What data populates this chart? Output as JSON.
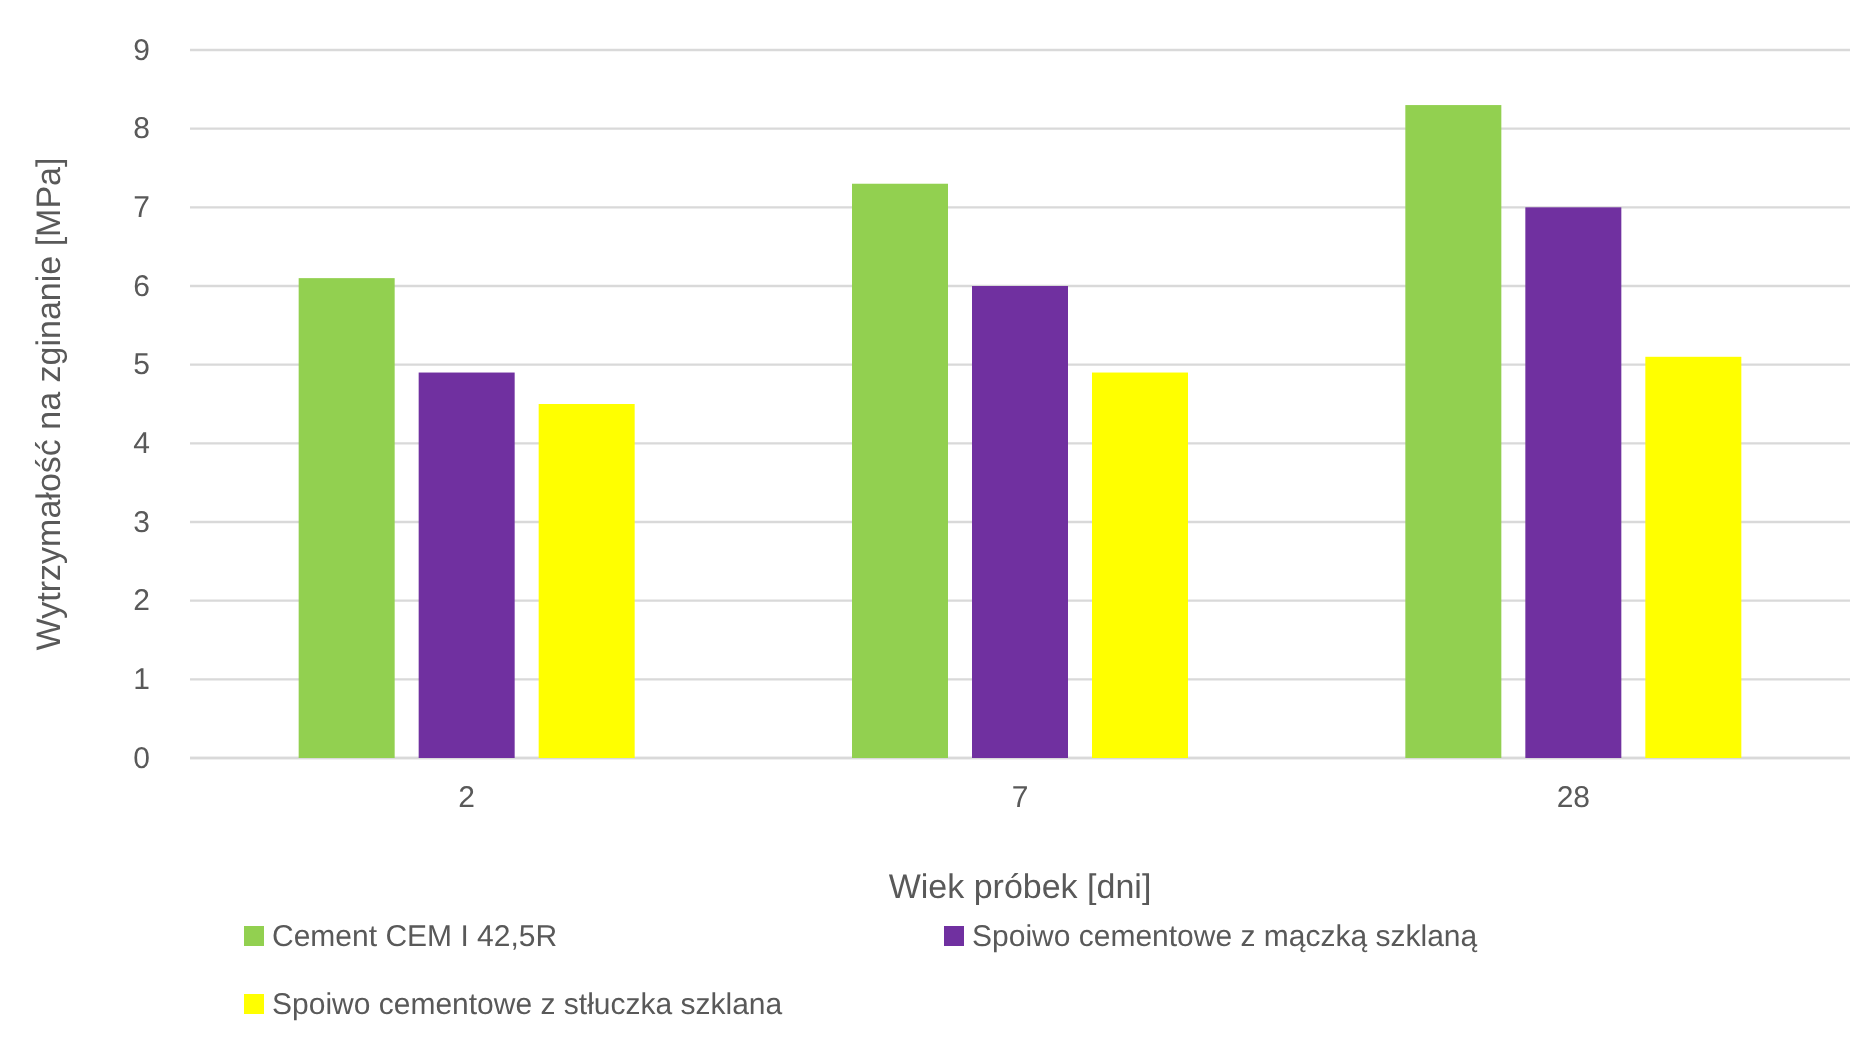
{
  "chart_data": {
    "type": "bar",
    "xlabel": "Wiek próbek [dni]",
    "ylabel": "Wytrzymałość na zginanie [MPa]",
    "categories": [
      "2",
      "7",
      "28"
    ],
    "series": [
      {
        "name": "Cement CEM I 42,5R",
        "color": "#92d050",
        "values": [
          6.1,
          7.3,
          8.3
        ]
      },
      {
        "name": "Spoiwo cementowe z mączką szklaną",
        "color": "#7030a0",
        "values": [
          4.9,
          6.0,
          7.0
        ]
      },
      {
        "name": "Spoiwo cementowe z stłuczka szklana",
        "color": "#ffff00",
        "values": [
          4.5,
          4.9,
          5.1
        ]
      }
    ],
    "ylim": [
      0,
      9
    ],
    "yticks": [
      0,
      1,
      2,
      3,
      4,
      5,
      6,
      7,
      8,
      9
    ],
    "grid": "y",
    "legend": "bottom"
  }
}
